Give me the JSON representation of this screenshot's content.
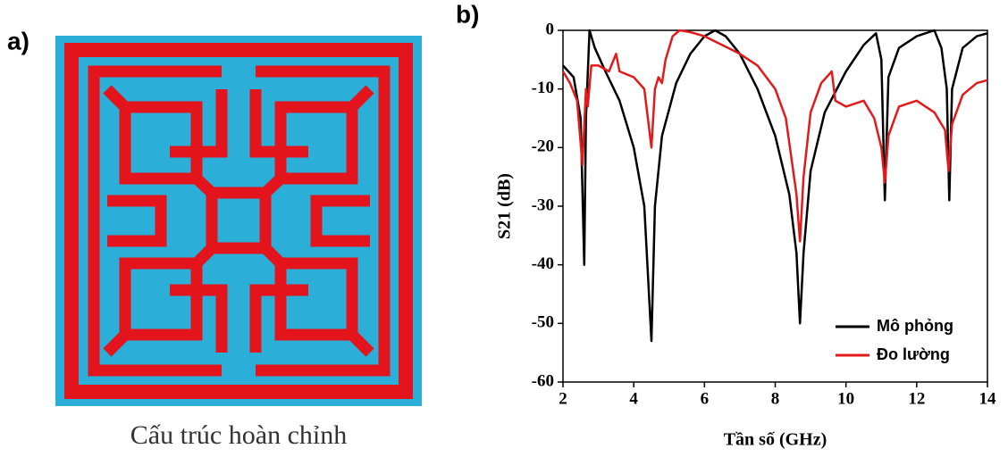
{
  "panel_a": {
    "label": "a)",
    "caption": "Cấu trúc hoàn chỉnh"
  },
  "chart_data": {
    "type": "line",
    "panel_label": "b)",
    "x_label": "Tần số (GHz)",
    "y_label": "S21 (dB)",
    "xlim": [
      2,
      14
    ],
    "xticks": [
      2,
      4,
      6,
      8,
      10,
      12,
      14
    ],
    "ylim": [
      -60,
      0
    ],
    "yticks": [
      -60,
      -50,
      -40,
      -30,
      -20,
      -10,
      0
    ],
    "legend": "lower right",
    "grid": false,
    "series": [
      {
        "name": "Mô phỏng",
        "color": "#000000",
        "x": [
          2,
          2.3,
          2.5,
          2.6,
          2.65,
          2.75,
          2.9,
          3.2,
          3.6,
          4.0,
          4.3,
          4.5,
          4.6,
          4.8,
          5.2,
          5.6,
          6.0,
          6.3,
          6.6,
          7.0,
          7.5,
          8.0,
          8.4,
          8.6,
          8.7,
          8.8,
          9.0,
          9.4,
          10.0,
          10.5,
          10.85,
          11.0,
          11.1,
          11.2,
          11.5,
          12.0,
          12.5,
          12.7,
          12.85,
          12.92,
          13.0,
          13.3,
          13.7,
          14
        ],
        "values": [
          -6,
          -8,
          -15,
          -40,
          -15,
          0,
          -3,
          -7,
          -12,
          -20,
          -30,
          -53,
          -30,
          -18,
          -9,
          -4,
          -1,
          0,
          -1,
          -4,
          -10,
          -18,
          -28,
          -38,
          -50,
          -38,
          -24,
          -14,
          -7,
          -2.5,
          -0.5,
          -5,
          -29,
          -8,
          -3,
          -1,
          0,
          -3,
          -10,
          -29,
          -10,
          -3,
          -1,
          -0.5
        ]
      },
      {
        "name": "Đo lường",
        "color": "#e31a1c",
        "x": [
          2,
          2.2,
          2.4,
          2.55,
          2.65,
          2.7,
          2.8,
          3.0,
          3.3,
          3.5,
          3.6,
          4.0,
          4.3,
          4.5,
          4.6,
          4.7,
          4.8,
          4.9,
          5.1,
          5.3,
          5.6,
          6.0,
          6.5,
          7.0,
          7.5,
          8.0,
          8.3,
          8.6,
          8.7,
          8.8,
          9.0,
          9.3,
          9.6,
          9.7,
          10.0,
          10.5,
          10.8,
          11.0,
          11.1,
          11.2,
          11.5,
          12.0,
          12.5,
          12.8,
          12.9,
          13.0,
          13.3,
          13.7,
          14
        ],
        "values": [
          -7,
          -9,
          -12,
          -23,
          -10,
          -13,
          -6,
          -6,
          -7,
          -4,
          -7,
          -8,
          -10,
          -20,
          -10,
          -8,
          -9,
          -5,
          -1,
          0,
          -0.3,
          -1,
          -2.5,
          -4,
          -6,
          -10,
          -15,
          -28,
          -36,
          -25,
          -14,
          -9,
          -7,
          -12,
          -13,
          -12,
          -15,
          -20,
          -26,
          -18,
          -13,
          -12,
          -14,
          -17,
          -24,
          -16,
          -11,
          -9,
          -8.5
        ]
      }
    ]
  }
}
